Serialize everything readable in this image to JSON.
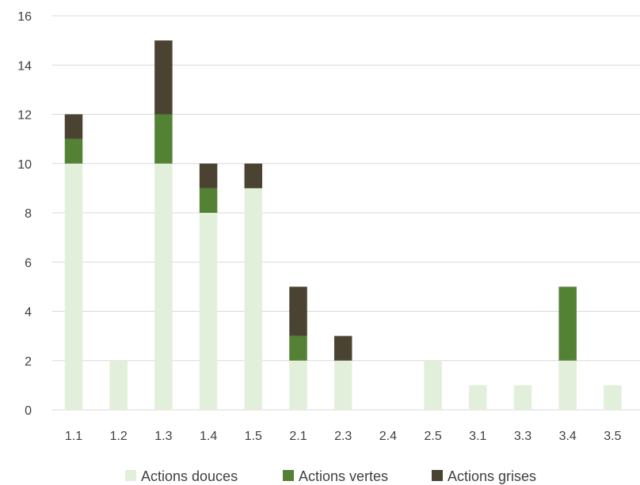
{
  "chart_data": {
    "type": "bar",
    "stacked": true,
    "categories": [
      "1.1",
      "1.2",
      "1.3",
      "1.4",
      "1.5",
      "2.1",
      "2.3",
      "2.4",
      "2.5",
      "3.1",
      "3.3",
      "3.4",
      "3.5"
    ],
    "series": [
      {
        "name": "Actions douces",
        "color": "#e2efda",
        "values": [
          10,
          2,
          10,
          8,
          9,
          2,
          2,
          0,
          2,
          1,
          1,
          2,
          1
        ]
      },
      {
        "name": "Actions vertes",
        "color": "#548235",
        "values": [
          1,
          0,
          2,
          1,
          0,
          1,
          0,
          0,
          0,
          0,
          0,
          3,
          0
        ]
      },
      {
        "name": "Actions grises",
        "color": "#4a4332",
        "values": [
          1,
          0,
          3,
          1,
          1,
          2,
          1,
          0,
          0,
          0,
          0,
          0,
          0
        ]
      }
    ],
    "ylim": [
      0,
      16
    ],
    "yticks": [
      "0",
      "2",
      "4",
      "6",
      "8",
      "10",
      "12",
      "14",
      "16"
    ],
    "grid": true,
    "legend": "bottom-center",
    "gridline_color": "#d9d9d9"
  }
}
